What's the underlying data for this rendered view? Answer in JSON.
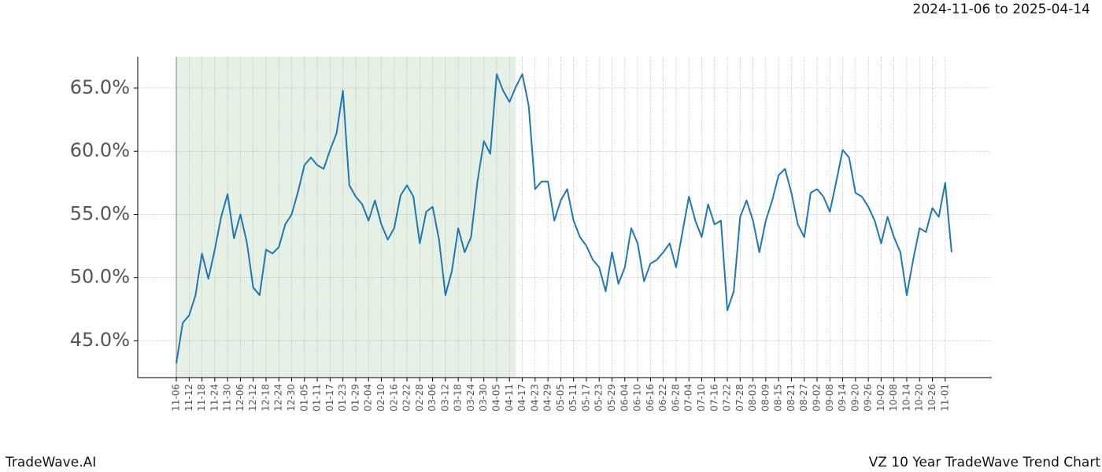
{
  "chart_data": {
    "type": "line",
    "title": "VZ 10 Year TradeWave Trend Chart",
    "subtitle": "2024-11-06 to 2025-04-14",
    "brand": "TradeWave.AI",
    "categories": [
      "11-06",
      null,
      "11-12",
      null,
      "11-18",
      null,
      "11-24",
      null,
      "11-30",
      null,
      "12-06",
      null,
      "12-12",
      null,
      "12-18",
      null,
      "12-24",
      null,
      "12-30",
      null,
      "01-05",
      null,
      "01-11",
      null,
      "01-17",
      null,
      "01-23",
      null,
      "01-29",
      null,
      "02-04",
      null,
      "02-10",
      null,
      "02-16",
      null,
      "02-22",
      null,
      "02-28",
      null,
      "03-06",
      null,
      "03-12",
      null,
      "03-18",
      null,
      "03-24",
      null,
      "03-30",
      null,
      "04-05",
      null,
      "04-11",
      null,
      "04-17",
      null,
      "04-23",
      null,
      "04-29",
      null,
      "05-05",
      null,
      "05-11",
      null,
      "05-17",
      null,
      "05-23",
      null,
      "05-29",
      null,
      "06-04",
      null,
      "06-10",
      null,
      "06-16",
      null,
      "06-22",
      null,
      "06-28",
      null,
      "07-04",
      null,
      "07-10",
      null,
      "07-16",
      null,
      "07-22",
      null,
      "07-28",
      null,
      "08-03",
      null,
      "08-09",
      null,
      "08-15",
      null,
      "08-21",
      null,
      "08-27",
      null,
      "09-02",
      null,
      "09-08",
      null,
      "09-14",
      null,
      "09-20",
      null,
      "09-26",
      null,
      "10-02",
      null,
      "10-08",
      null,
      "10-14",
      null,
      "10-20",
      null,
      "10-26",
      null,
      "11-01",
      null
    ],
    "values": [
      43.2,
      46.4,
      47.0,
      48.6,
      51.9,
      49.9,
      52.2,
      54.8,
      56.6,
      53.1,
      55.0,
      52.8,
      49.2,
      48.6,
      52.2,
      51.9,
      52.4,
      54.2,
      55.0,
      56.8,
      58.9,
      59.5,
      58.9,
      58.6,
      60.1,
      61.4,
      64.8,
      57.3,
      56.4,
      55.8,
      54.5,
      56.1,
      54.2,
      53.0,
      53.9,
      56.5,
      57.3,
      56.4,
      52.7,
      55.2,
      55.6,
      53.0,
      48.6,
      50.5,
      53.9,
      52.0,
      53.2,
      57.6,
      60.8,
      59.8,
      66.1,
      64.8,
      63.9,
      65.1,
      66.1,
      63.6,
      57.0,
      57.6,
      57.6,
      54.5,
      56.1,
      57.0,
      54.5,
      53.2,
      52.5,
      51.4,
      50.8,
      48.9,
      52.0,
      49.5,
      50.8,
      53.9,
      52.7,
      49.7,
      51.1,
      51.4,
      52.0,
      52.7,
      50.8,
      53.6,
      56.4,
      54.5,
      53.2,
      55.8,
      54.2,
      54.5,
      47.4,
      48.9,
      54.8,
      56.1,
      54.5,
      52.0,
      54.5,
      56.1,
      58.1,
      58.6,
      56.7,
      54.2,
      53.2,
      56.7,
      57.0,
      56.4,
      55.2,
      57.6,
      60.1,
      59.5,
      56.7,
      56.4,
      55.6,
      54.5,
      52.7,
      54.8,
      53.2,
      52.0,
      48.6,
      51.4,
      53.9,
      53.6,
      55.5,
      54.8,
      57.5,
      52.0
    ],
    "color": "#1f77b4",
    "shade_color": "#e5f1e5",
    "ylim": [
      42.07,
      67.49
    ],
    "yticks": [
      {
        "value": 45,
        "label": "45.0%"
      },
      {
        "value": 50,
        "label": "50.0%"
      },
      {
        "value": 55,
        "label": "55.0%"
      },
      {
        "value": 60,
        "label": "60.0%"
      },
      {
        "value": 65,
        "label": "65.0%"
      }
    ],
    "grid": true
  }
}
